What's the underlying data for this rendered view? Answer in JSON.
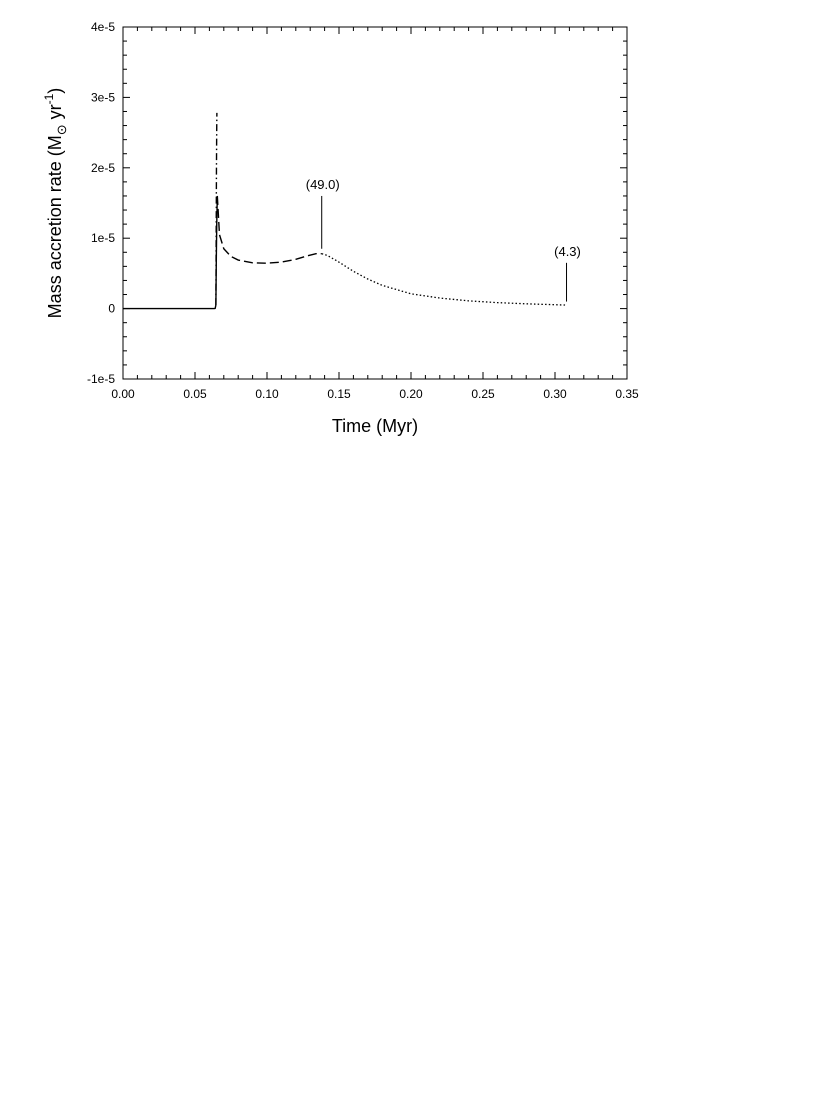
{
  "chart_data": {
    "type": "line",
    "title": "",
    "xlabel": "Time (Myr)",
    "ylabel": {
      "main": "Mass accretion rate (M",
      "sun_symbol": "⊙",
      "unit": " yr",
      "exponent": "-1",
      "close": ")"
    },
    "xlim": [
      0.0,
      0.35
    ],
    "ylim": [
      -1e-05,
      4e-05
    ],
    "x_ticks": [
      {
        "value": 0.0,
        "label": "0.00"
      },
      {
        "value": 0.05,
        "label": "0.05"
      },
      {
        "value": 0.1,
        "label": "0.10"
      },
      {
        "value": 0.15,
        "label": "0.15"
      },
      {
        "value": 0.2,
        "label": "0.20"
      },
      {
        "value": 0.25,
        "label": "0.25"
      },
      {
        "value": 0.3,
        "label": "0.30"
      },
      {
        "value": 0.35,
        "label": "0.35"
      }
    ],
    "y_ticks": [
      {
        "value": -1e-05,
        "label": "-1e-5"
      },
      {
        "value": 0,
        "label": "0"
      },
      {
        "value": 1e-05,
        "label": "1e-5"
      },
      {
        "value": 2e-05,
        "label": "2e-5"
      },
      {
        "value": 3e-05,
        "label": "3e-5"
      },
      {
        "value": 4e-05,
        "label": "4e-5"
      }
    ],
    "grid": false,
    "legend": "none",
    "series": [
      {
        "style": "solid",
        "x": [
          0.0,
          0.03,
          0.06,
          0.0625,
          0.0635,
          0.064,
          0.0645
        ],
        "y": [
          0.0,
          0.0,
          0.0,
          0.0,
          5e-09,
          3e-08,
          5e-07
        ]
      },
      {
        "style": "dash-dot",
        "x": [
          0.0645,
          0.0647,
          0.0649,
          0.0651,
          0.0652
        ],
        "y": [
          5e-07,
          1e-05,
          2e-05,
          2.6e-05,
          2.78e-05
        ]
      },
      {
        "style": "solid",
        "x": [
          0.0645,
          0.0648,
          0.0651,
          0.0655
        ],
        "y": [
          5e-07,
          7e-06,
          1.2e-05,
          1.6e-05
        ]
      },
      {
        "style": "dashed",
        "x": [
          0.0655,
          0.067,
          0.07,
          0.075,
          0.08,
          0.09,
          0.1,
          0.11,
          0.12,
          0.128,
          0.134,
          0.138
        ],
        "y": [
          1.6e-05,
          1.05e-05,
          8.5e-06,
          7.4e-06,
          6.9e-06,
          6.5e-06,
          6.45e-06,
          6.6e-06,
          7e-06,
          7.5e-06,
          7.8e-06,
          7.8e-06
        ]
      },
      {
        "style": "dotted",
        "x": [
          0.138,
          0.142,
          0.15,
          0.16,
          0.17,
          0.18,
          0.19,
          0.2,
          0.22,
          0.24,
          0.26,
          0.28,
          0.3,
          0.308
        ],
        "y": [
          7.8e-06,
          7.55e-06,
          6.6e-06,
          5.3e-06,
          4.2e-06,
          3.3e-06,
          2.7e-06,
          2.1e-06,
          1.5e-06,
          1.1e-06,
          8.5e-07,
          6.8e-07,
          5.5e-07,
          5e-07
        ]
      }
    ],
    "annotations": [
      {
        "text": "(49.0)",
        "x": 0.138,
        "y_from": 8.5e-06,
        "y_to": 1.6e-05
      },
      {
        "text": "(4.3)",
        "x": 0.308,
        "y_from": 1e-06,
        "y_to": 6.5e-06
      }
    ]
  }
}
